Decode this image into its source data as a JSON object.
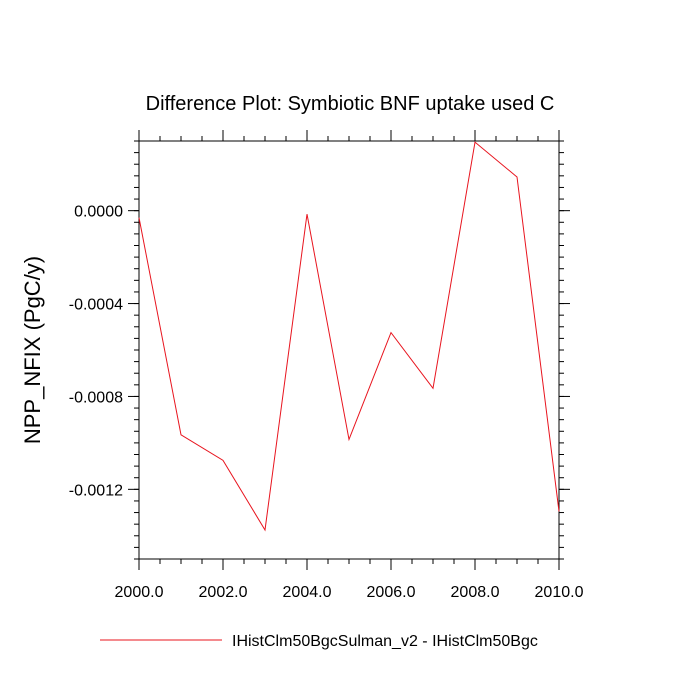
{
  "chart_data": {
    "type": "line",
    "title": "Difference Plot: Symbiotic BNF uptake used C",
    "xlabel": "",
    "ylabel": "NPP_NFIX  (PgC/y)",
    "xlim": [
      2000,
      2010
    ],
    "ylim": [
      -0.0015,
      0.0003
    ],
    "xticks": [
      2000,
      2002,
      2004,
      2006,
      2008,
      2010
    ],
    "xtick_labels": [
      "2000.0",
      "2002.0",
      "2004.0",
      "2006.0",
      "2008.0",
      "2010.0"
    ],
    "yticks": [
      0.0,
      -0.0004,
      -0.0008,
      -0.0012
    ],
    "ytick_labels": [
      "0.0000",
      "-0.0004",
      "-0.0008",
      "-0.0012"
    ],
    "grid": false,
    "legend_position": "bottom",
    "series": [
      {
        "name": "IHistClm50BgcSulman_v2 - IHistClm50Bgc",
        "color": "#e8141e",
        "x": [
          2000,
          2001,
          2002,
          2003,
          2004,
          2005,
          2006,
          2007,
          2008,
          2009,
          2010
        ],
        "values": [
          -3e-05,
          -0.000965,
          -0.001075,
          -0.001375,
          -1.5e-05,
          -0.000985,
          -0.000525,
          -0.000765,
          0.000295,
          0.000145,
          -0.001295
        ]
      }
    ]
  }
}
